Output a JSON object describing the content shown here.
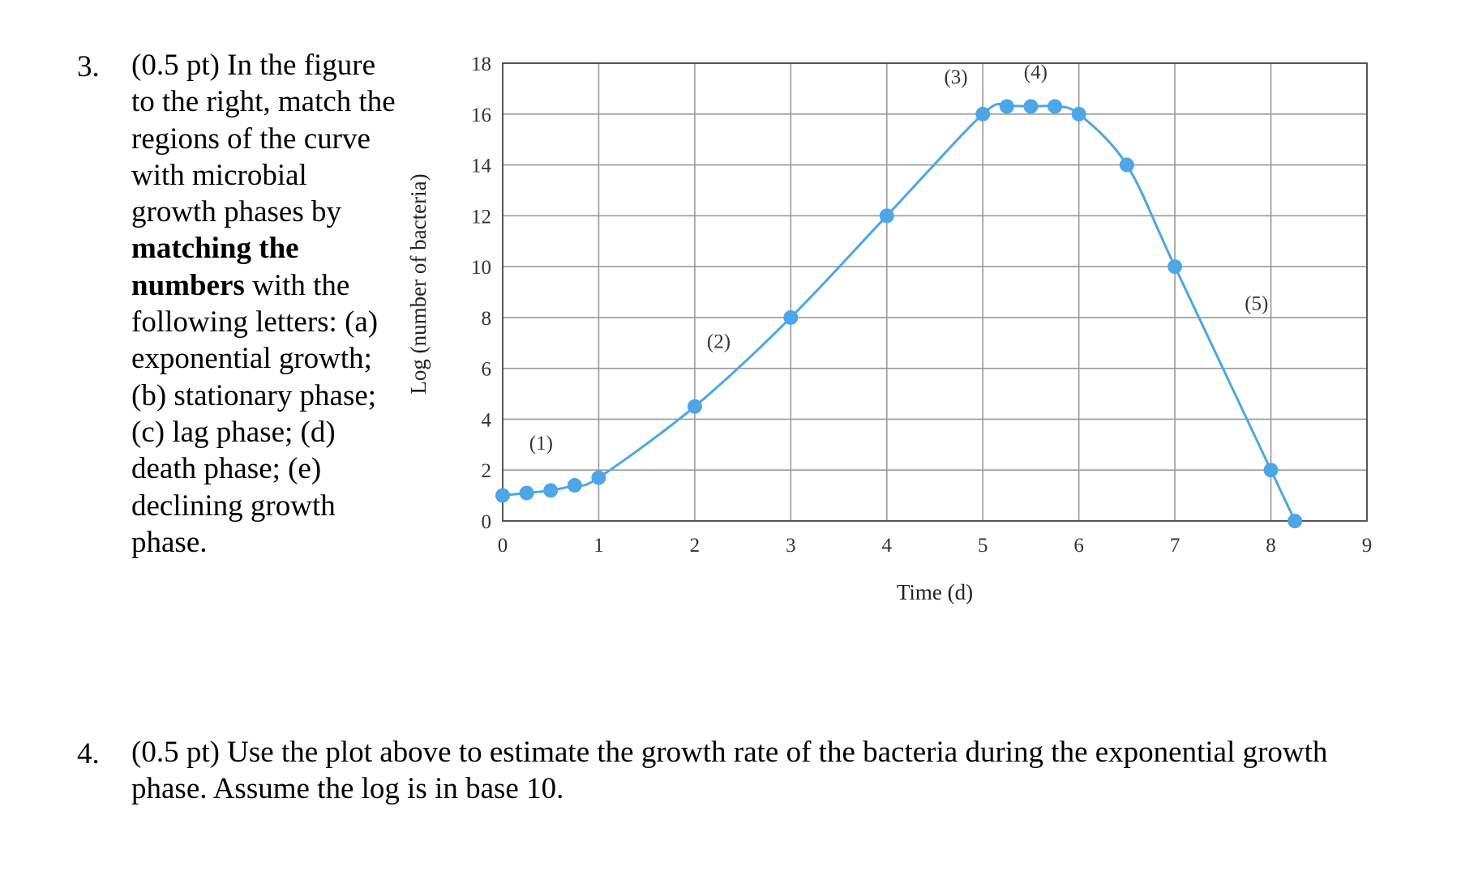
{
  "question3": {
    "number": "3.",
    "prefix": "(0.5 pt) In the figure to the right, match the regions of the curve with microbial growth phases by ",
    "bold": "matching the numbers",
    "suffix": " with the following letters: (a) exponential growth; (b) stationary phase; (c) lag phase; (d) death phase; (e) declining growth phase."
  },
  "question4": {
    "number": "4.",
    "text": "(0.5 pt) Use the plot above to estimate the growth rate of the bacteria during the exponential growth phase. Assume the log is in base 10."
  },
  "chart_data": {
    "type": "line",
    "xlabel": "Time (d)",
    "ylabel": "Log (number of bacteria)",
    "xlim": [
      0,
      9
    ],
    "ylim": [
      0,
      18
    ],
    "xticks": [
      "0",
      "1",
      "2",
      "3",
      "4",
      "5",
      "6",
      "7",
      "8",
      "9"
    ],
    "yticks": [
      "0",
      "2",
      "4",
      "6",
      "8",
      "10",
      "12",
      "14",
      "16",
      "18"
    ],
    "grid": true,
    "line_color": "#4da6e6",
    "points": [
      {
        "x": 0,
        "y": 1
      },
      {
        "x": 0.25,
        "y": 1.1
      },
      {
        "x": 0.5,
        "y": 1.2
      },
      {
        "x": 0.75,
        "y": 1.4
      },
      {
        "x": 1,
        "y": 1.7
      },
      {
        "x": 2,
        "y": 4.5
      },
      {
        "x": 3,
        "y": 8
      },
      {
        "x": 4,
        "y": 12
      },
      {
        "x": 5,
        "y": 16
      },
      {
        "x": 5.25,
        "y": 16.3
      },
      {
        "x": 5.5,
        "y": 16.3
      },
      {
        "x": 5.75,
        "y": 16.3
      },
      {
        "x": 6,
        "y": 16
      },
      {
        "x": 6.5,
        "y": 14
      },
      {
        "x": 7,
        "y": 10
      },
      {
        "x": 8,
        "y": 2
      },
      {
        "x": 8.25,
        "y": 0
      }
    ],
    "annotations": [
      {
        "text": "(1)",
        "x": 0.4,
        "y": 2.8
      },
      {
        "text": "(2)",
        "x": 2.25,
        "y": 6.8
      },
      {
        "text": "(3)",
        "x": 4.72,
        "y": 17.2
      },
      {
        "text": "(4)",
        "x": 5.55,
        "y": 17.4
      },
      {
        "text": "(5)",
        "x": 7.85,
        "y": 8.3
      }
    ]
  }
}
